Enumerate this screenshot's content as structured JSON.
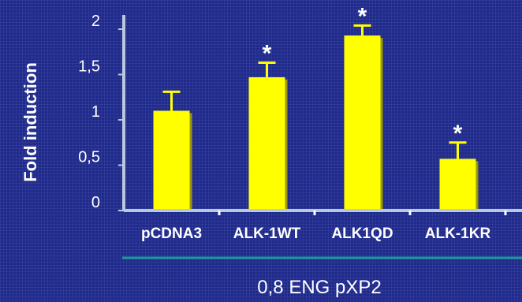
{
  "chart_data": {
    "type": "bar",
    "categories": [
      "pCDNA3",
      "ALK-1WT",
      "ALK1QD",
      "ALK-1KR"
    ],
    "values": [
      1.1,
      1.47,
      1.93,
      0.57
    ],
    "errors": [
      0.21,
      0.16,
      0.11,
      0.18
    ],
    "significance": [
      "",
      "*",
      "*",
      "*"
    ],
    "ylabel": "Fold induction",
    "xlabel": "",
    "group_label": "0,8 ENG pXP2",
    "ylim": [
      0,
      2.2
    ],
    "yticks": [
      {
        "value": 0,
        "label": "0"
      },
      {
        "value": 0.5,
        "label": "0,5"
      },
      {
        "value": 1,
        "label": "1"
      },
      {
        "value": 1.5,
        "label": "1,5"
      },
      {
        "value": 2,
        "label": "2"
      }
    ],
    "grid": false,
    "colors": {
      "background": "#1f2a8c",
      "bar": "#ffff00",
      "bar_shadow": "#9a9a00",
      "axis": "#b8c8e0",
      "group_line": "#1a9a9a",
      "text": "#ffffff"
    }
  }
}
